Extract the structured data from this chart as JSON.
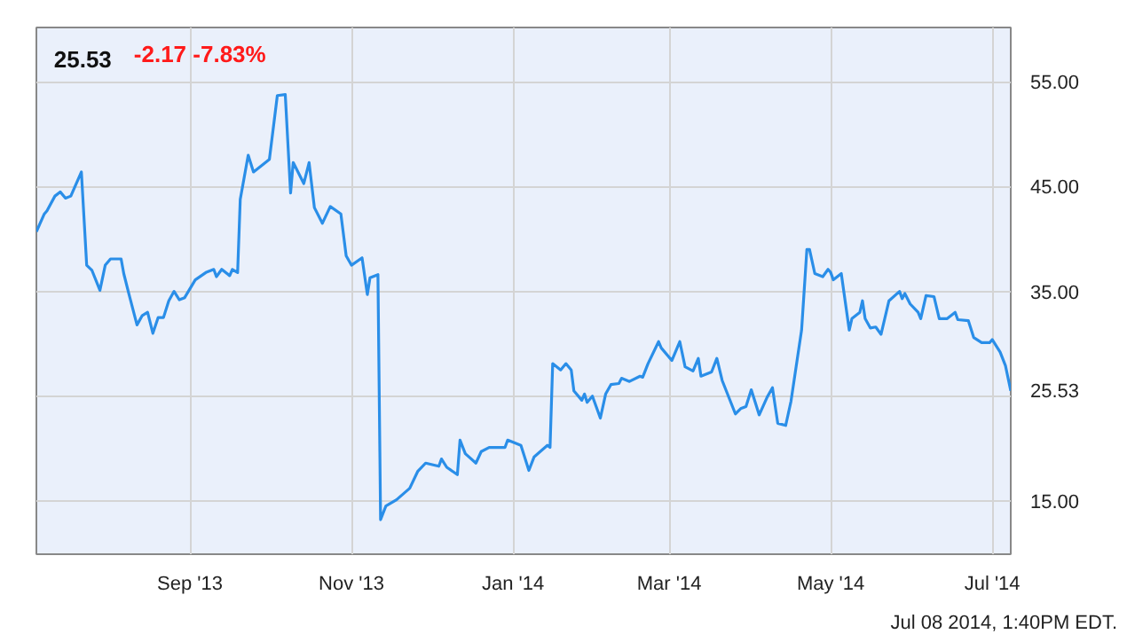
{
  "chart_data": {
    "type": "line",
    "title": "25.53",
    "subtitle": "-2.17  -7.83%",
    "annotations": [
      "Jul 08 2014, 1:40PM EDT."
    ],
    "xlim": [
      "2013-07-05",
      "2014-07-08"
    ],
    "xticks": [
      {
        "value": "2013-09-01",
        "label": "Sep '13"
      },
      {
        "value": "2013-11-01",
        "label": "Nov '13"
      },
      {
        "value": "2014-01-01",
        "label": "Jan '14"
      },
      {
        "value": "2014-03-01",
        "label": "Mar '14"
      },
      {
        "value": "2014-05-01",
        "label": "May '14"
      },
      {
        "value": "2014-07-01",
        "label": "Jul '14"
      }
    ],
    "ylim": [
      9.9,
      60.2
    ],
    "yticks": [
      {
        "value": 15,
        "label": "15.00"
      },
      {
        "value": 25,
        "label": null
      },
      {
        "value": 25.53,
        "label": "25.53"
      },
      {
        "value": 35,
        "label": "35.00"
      },
      {
        "value": 45,
        "label": "45.00"
      },
      {
        "value": 55,
        "label": "55.00"
      }
    ],
    "grid": true,
    "marker": "none",
    "line_style": "solid",
    "series": [
      {
        "color": "#2a8ee8",
        "x": [
          "2013-07-05",
          "2013-07-08",
          "2013-07-09",
          "2013-07-12",
          "2013-07-14",
          "2013-07-16",
          "2013-07-18",
          "2013-07-22",
          "2013-07-24",
          "2013-07-26",
          "2013-07-29",
          "2013-07-31",
          "2013-08-02",
          "2013-08-06",
          "2013-08-07",
          "2013-08-09",
          "2013-08-12",
          "2013-08-14",
          "2013-08-16",
          "2013-08-18",
          "2013-08-20",
          "2013-08-22",
          "2013-08-24",
          "2013-08-26",
          "2013-08-28",
          "2013-08-30",
          "2013-09-03",
          "2013-09-07",
          "2013-09-10",
          "2013-09-11",
          "2013-09-13",
          "2013-09-16",
          "2013-09-17",
          "2013-09-19",
          "2013-09-20",
          "2013-09-23",
          "2013-09-25",
          "2013-10-01",
          "2013-10-04",
          "2013-10-07",
          "2013-10-09",
          "2013-10-10",
          "2013-10-14",
          "2013-10-16",
          "2013-10-18",
          "2013-10-21",
          "2013-10-24",
          "2013-10-28",
          "2013-10-30",
          "2013-11-01",
          "2013-11-05",
          "2013-11-07",
          "2013-11-08",
          "2013-11-11",
          "2013-11-12",
          "2013-11-14",
          "2013-11-18",
          "2013-11-23",
          "2013-11-26",
          "2013-11-29",
          "2013-12-04",
          "2013-12-05",
          "2013-12-07",
          "2013-12-11",
          "2013-12-12",
          "2013-12-14",
          "2013-12-18",
          "2013-12-20",
          "2013-12-23",
          "2013-12-29",
          "2013-12-30",
          "2014-01-04",
          "2014-01-07",
          "2014-01-09",
          "2014-01-14",
          "2014-01-15",
          "2014-01-16",
          "2014-01-19",
          "2014-01-21",
          "2014-01-23",
          "2014-01-24",
          "2014-01-27",
          "2014-01-28",
          "2014-01-29",
          "2014-01-31",
          "2014-02-03",
          "2014-02-05",
          "2014-02-07",
          "2014-02-10",
          "2014-02-11",
          "2014-02-14",
          "2014-02-18",
          "2014-02-19",
          "2014-02-21",
          "2014-02-25",
          "2014-02-26",
          "2014-03-02",
          "2014-03-05",
          "2014-03-07",
          "2014-03-10",
          "2014-03-12",
          "2014-03-13",
          "2014-03-17",
          "2014-03-19",
          "2014-03-21",
          "2014-03-26",
          "2014-03-28",
          "2014-03-30",
          "2014-04-01",
          "2014-04-04",
          "2014-04-07",
          "2014-04-09",
          "2014-04-11",
          "2014-04-14",
          "2014-04-16",
          "2014-04-20",
          "2014-04-22",
          "2014-04-23",
          "2014-04-25",
          "2014-04-28",
          "2014-04-30",
          "2014-05-01",
          "2014-05-02",
          "2014-05-05",
          "2014-05-08",
          "2014-05-09",
          "2014-05-12",
          "2014-05-13",
          "2014-05-14",
          "2014-05-16",
          "2014-05-18",
          "2014-05-20",
          "2014-05-23",
          "2014-05-27",
          "2014-05-28",
          "2014-05-29",
          "2014-05-31",
          "2014-06-03",
          "2014-06-04",
          "2014-06-06",
          "2014-06-09",
          "2014-06-11",
          "2014-06-14",
          "2014-06-17",
          "2014-06-18",
          "2014-06-22",
          "2014-06-24",
          "2014-06-27",
          "2014-06-30",
          "2014-07-01",
          "2014-07-04",
          "2014-07-06",
          "2014-07-08"
        ],
        "values": [
          40.7,
          42.4,
          42.7,
          44.1,
          44.5,
          43.9,
          44.1,
          46.4,
          37.5,
          37.0,
          35.1,
          37.5,
          38.1,
          38.1,
          36.7,
          34.7,
          31.8,
          32.7,
          33.0,
          31.0,
          32.5,
          32.5,
          34.1,
          35.0,
          34.2,
          34.4,
          36.1,
          36.8,
          37.1,
          36.4,
          37.1,
          36.5,
          37.1,
          36.8,
          43.8,
          48.0,
          46.4,
          47.6,
          53.7,
          53.8,
          44.4,
          47.3,
          45.3,
          47.3,
          43.0,
          41.5,
          43.1,
          42.4,
          38.4,
          37.5,
          38.2,
          34.7,
          36.3,
          36.6,
          13.2,
          14.5,
          15.1,
          16.2,
          17.8,
          18.6,
          18.3,
          19.0,
          18.2,
          17.5,
          20.8,
          19.5,
          18.6,
          19.7,
          20.1,
          20.1,
          20.8,
          20.3,
          17.9,
          19.2,
          20.3,
          20.1,
          28.1,
          27.5,
          28.1,
          27.5,
          25.5,
          24.6,
          25.2,
          24.4,
          25.0,
          22.9,
          25.2,
          26.1,
          26.2,
          26.7,
          26.4,
          26.9,
          26.8,
          28.1,
          30.2,
          29.6,
          28.4,
          30.2,
          27.8,
          27.4,
          28.6,
          26.9,
          27.3,
          28.6,
          26.5,
          23.3,
          23.8,
          24.0,
          25.6,
          23.2,
          24.9,
          25.8,
          22.4,
          22.2,
          24.5,
          31.3,
          39.0,
          39.0,
          36.7,
          36.4,
          37.1,
          36.8,
          36.1,
          36.7,
          31.3,
          32.4,
          33.0,
          34.1,
          32.4,
          31.5,
          31.6,
          30.9,
          34.1,
          35.0,
          34.3,
          34.8,
          33.8,
          33.0,
          32.4,
          34.6,
          34.5,
          32.4,
          32.4,
          33.0,
          32.3,
          32.2,
          30.6,
          30.1,
          30.1,
          30.4,
          29.2,
          27.9,
          25.5
        ]
      }
    ]
  }
}
